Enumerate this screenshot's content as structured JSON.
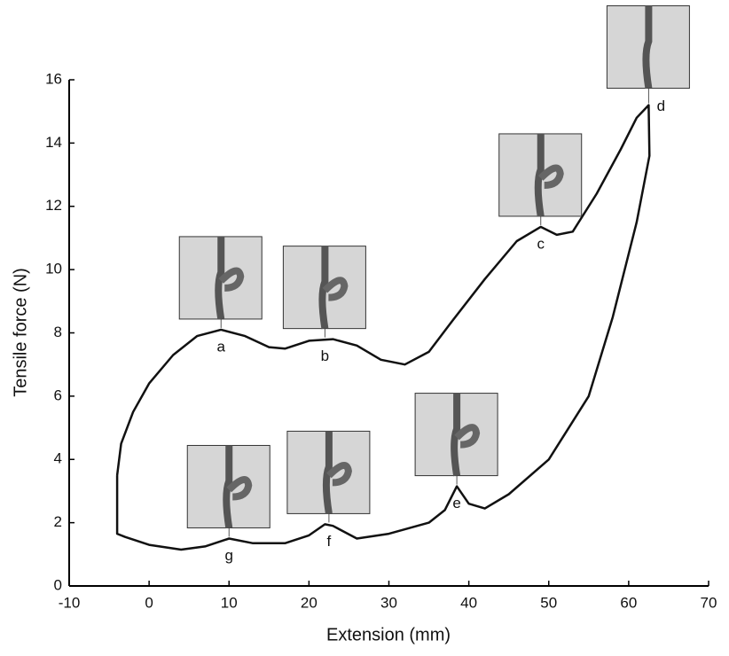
{
  "chart_data": {
    "type": "line",
    "x_label": "Extension (mm)",
    "y_label": "Tensile force (N)",
    "xlim": [
      -10,
      70
    ],
    "xticks": [
      -10,
      0,
      10,
      20,
      30,
      40,
      50,
      60,
      70
    ],
    "ylim": [
      0,
      16
    ],
    "yticks": [
      0,
      2,
      4,
      6,
      8,
      10,
      12,
      14,
      16
    ],
    "grid": false,
    "series": [
      {
        "color": "#111111",
        "x": [
          -4,
          -3.5,
          -2,
          0,
          3,
          6,
          9,
          12,
          15,
          17,
          20,
          23,
          26,
          29,
          32,
          35,
          38,
          42,
          46,
          49,
          51,
          53,
          56,
          59,
          61,
          62.5,
          62.6,
          61,
          58,
          55,
          50,
          45,
          42,
          40,
          38.5,
          37,
          35,
          30,
          26,
          23,
          22,
          20,
          17,
          13,
          10,
          7,
          4,
          0,
          -3,
          -4,
          -4
        ],
        "values": [
          3.5,
          4.5,
          5.5,
          6.4,
          7.3,
          7.9,
          8.1,
          7.9,
          7.55,
          7.5,
          7.75,
          7.8,
          7.6,
          7.15,
          7.0,
          7.4,
          8.4,
          9.7,
          10.9,
          11.35,
          11.1,
          11.2,
          12.4,
          13.8,
          14.8,
          15.2,
          13.6,
          11.5,
          8.5,
          6.0,
          4.0,
          2.9,
          2.45,
          2.6,
          3.15,
          2.4,
          2.0,
          1.65,
          1.5,
          1.9,
          1.95,
          1.6,
          1.35,
          1.35,
          1.5,
          1.25,
          1.15,
          1.3,
          1.55,
          1.65,
          3.5
        ]
      }
    ],
    "annotations": [
      {
        "label": "a",
        "x": 9,
        "y": 8.1
      },
      {
        "label": "b",
        "x": 22,
        "y": 7.8
      },
      {
        "label": "c",
        "x": 49,
        "y": 11.35
      },
      {
        "label": "d",
        "x": 62.5,
        "y": 15.2
      },
      {
        "label": "e",
        "x": 38.5,
        "y": 3.15
      },
      {
        "label": "f",
        "x": 22.5,
        "y": 1.95
      },
      {
        "label": "g",
        "x": 10,
        "y": 1.5
      }
    ]
  }
}
